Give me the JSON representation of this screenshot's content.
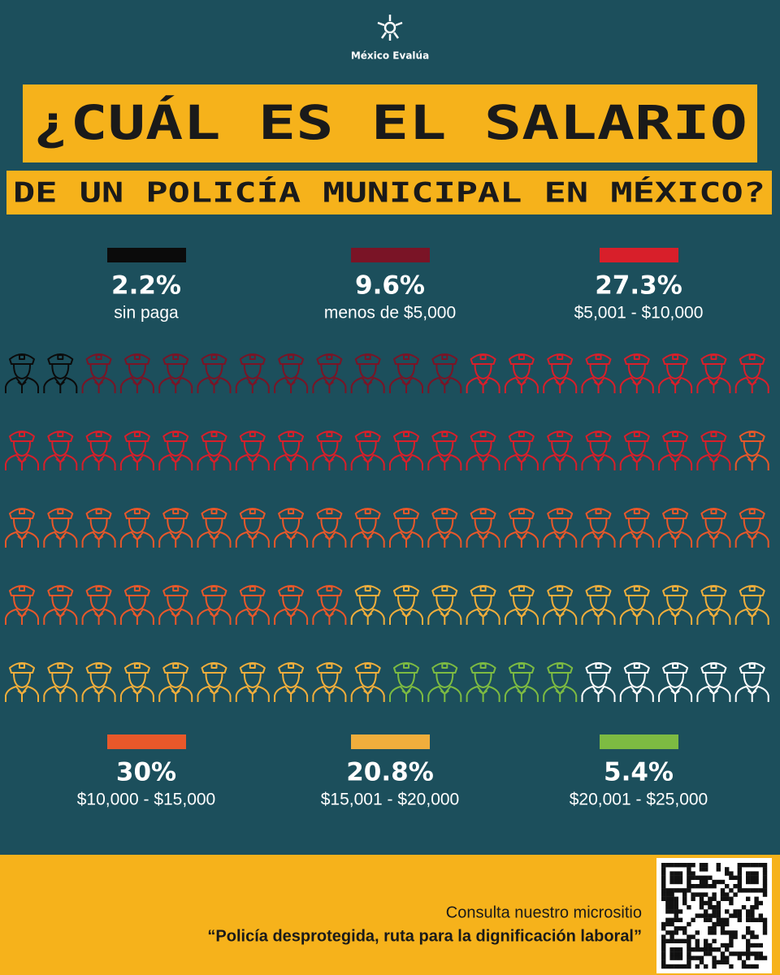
{
  "brand": "México Evalúa",
  "chart_data": {
    "type": "pictograph",
    "title": "¿CUÁL ES EL SALARIO",
    "subtitle": "DE UN POLICÍA MUNICIPAL EN MÉXICO?",
    "categories": [
      "sin paga",
      "menos de $5,000",
      "$5,001 - $10,000",
      "$10,000 - $15,000",
      "$15,001 - $20,000",
      "$20,001 - $25,000"
    ],
    "values": [
      2.2,
      9.6,
      27.3,
      30,
      20.8,
      5.4
    ],
    "value_labels": [
      "2.2%",
      "9.6%",
      "27.3%",
      "30%",
      "20.8%",
      "5.4%"
    ],
    "colors": [
      "#0b0b0b",
      "#7a1426",
      "#d81f2a",
      "#e8582a",
      "#f0ae3c",
      "#7dbb42"
    ]
  },
  "footer": {
    "text": "Consulta nuestro micrositio",
    "link": "“Policía desprotegida, ruta para la dignificación laboral”"
  }
}
